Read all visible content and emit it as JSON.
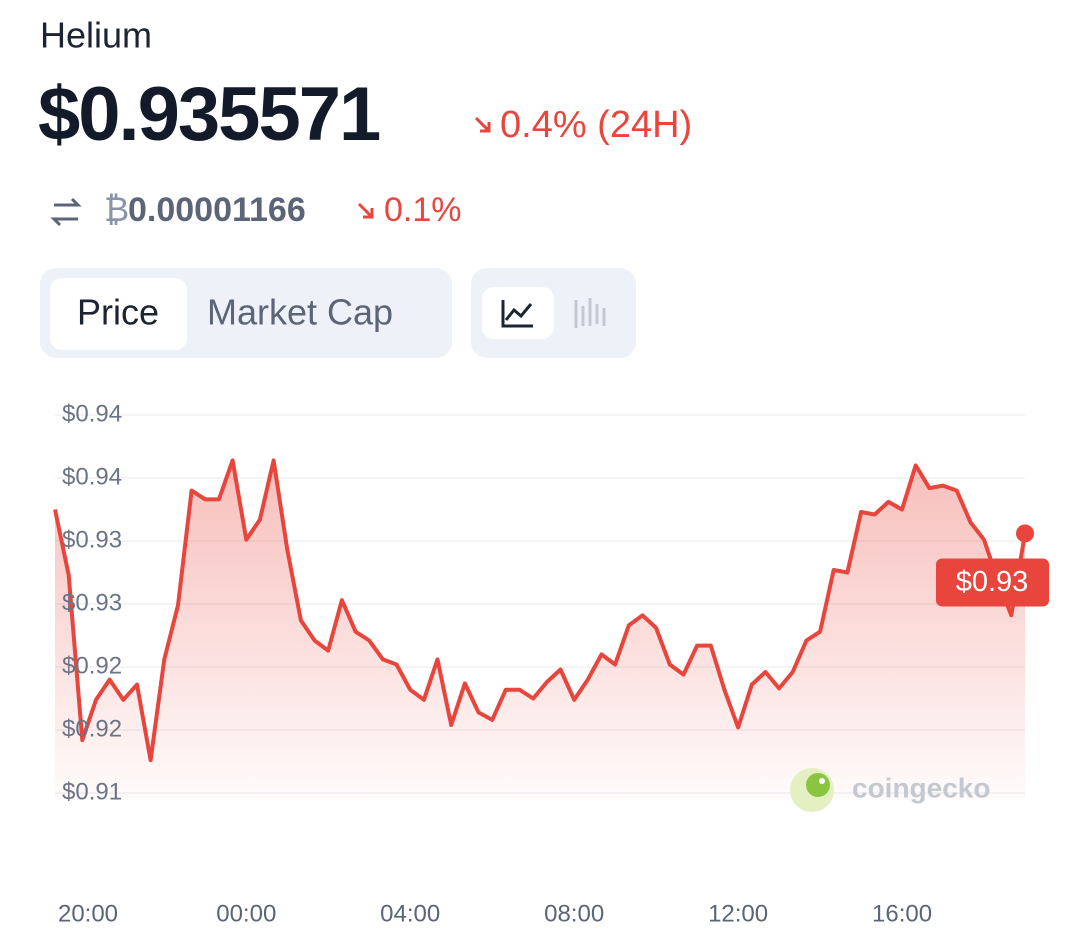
{
  "header": {
    "name": "Helium",
    "price": "$0.935571",
    "change": "0.4% (24H)",
    "btc_symbol": "₿",
    "btc_value": "0.00001166",
    "btc_change": "0.1%"
  },
  "tabs": [
    "Price",
    "Market Cap"
  ],
  "watermark": "coingecko",
  "chart_data": {
    "type": "line",
    "color": "#e8453c",
    "current_label": "$0.93",
    "grid": true,
    "ylim": [
      0.91,
      0.94
    ],
    "yticks": [
      {
        "value": 0.94,
        "label": "$0.94"
      },
      {
        "value": 0.935,
        "label": "$0.94"
      },
      {
        "value": 0.93,
        "label": "$0.93"
      },
      {
        "value": 0.925,
        "label": "$0.93"
      },
      {
        "value": 0.92,
        "label": "$0.92"
      },
      {
        "value": 0.915,
        "label": "$0.92"
      },
      {
        "value": 0.91,
        "label": "$0.91"
      }
    ],
    "categories": [
      null,
      null,
      "20:00",
      null,
      null,
      null,
      null,
      null,
      null,
      null,
      null,
      null,
      null,
      null,
      "00:00",
      null,
      null,
      null,
      null,
      null,
      null,
      null,
      null,
      null,
      null,
      null,
      "04:00",
      null,
      null,
      null,
      null,
      null,
      null,
      null,
      null,
      null,
      null,
      null,
      "08:00",
      null,
      null,
      null,
      null,
      null,
      null,
      null,
      null,
      null,
      null,
      null,
      "12:00",
      null,
      null,
      null,
      null,
      null,
      null,
      null,
      null,
      null,
      null,
      null,
      "16:00",
      null,
      null,
      null,
      null,
      null,
      null,
      null,
      null,
      null
    ],
    "values": [
      0.9325,
      0.9273,
      0.9142,
      0.9174,
      0.919,
      0.9174,
      0.9186,
      0.9126,
      0.9206,
      0.9249,
      0.934,
      0.9333,
      0.9333,
      0.9364,
      0.9301,
      0.9317,
      0.9364,
      0.9293,
      0.9237,
      0.9221,
      0.9213,
      0.9253,
      0.9228,
      0.9221,
      0.9206,
      0.9202,
      0.9182,
      0.9174,
      0.9206,
      0.9154,
      0.9187,
      0.9164,
      0.9158,
      0.9182,
      0.9182,
      0.9175,
      0.9188,
      0.9198,
      0.9174,
      0.919,
      0.921,
      0.9202,
      0.9233,
      0.9241,
      0.9231,
      0.9202,
      0.9194,
      0.9217,
      0.9217,
      0.9182,
      0.9152,
      0.9186,
      0.9196,
      0.9183,
      0.9196,
      0.9221,
      0.9228,
      0.9277,
      0.9275,
      0.9323,
      0.9321,
      0.9331,
      0.9325,
      0.936,
      0.9342,
      0.9344,
      0.934,
      0.9315,
      0.9301,
      0.9269,
      0.9241,
      0.9306
    ]
  }
}
